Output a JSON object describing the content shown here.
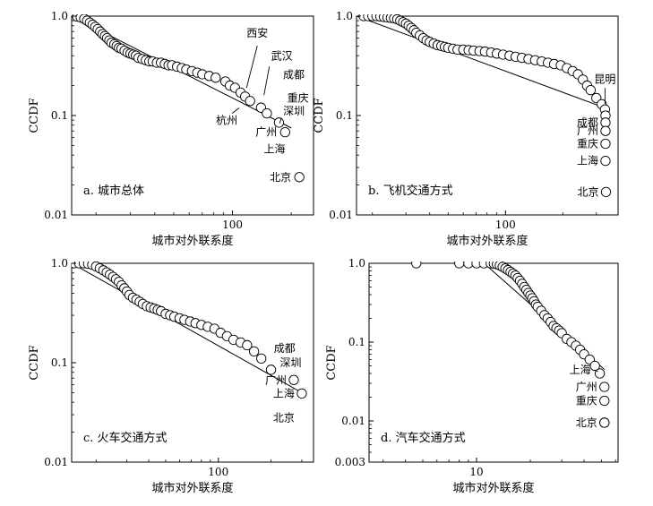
{
  "chart_data": [
    {
      "type": "scatter",
      "title": "a. 城市总体",
      "xlabel": "城市对外联系度",
      "ylabel": "CCDF",
      "x_scale": "log",
      "y_scale": "log",
      "xlim": [
        15,
        260
      ],
      "ylim": [
        0.01,
        1.0
      ],
      "xticks": [
        100
      ],
      "xtick_labels": [
        "100"
      ],
      "yticks": [
        0.01,
        0.1,
        1.0
      ],
      "ytick_labels": [
        "0.01",
        "0.1",
        "1.0"
      ],
      "grid": false,
      "legend": "none",
      "points": {
        "x": [
          16,
          16.7,
          17.4,
          18,
          18.6,
          19.2,
          19.8,
          20.4,
          21,
          21.6,
          22.2,
          22.8,
          23.4,
          24,
          24.8,
          25.5,
          26.2,
          27,
          28,
          29,
          30,
          31,
          32,
          33,
          34.5,
          36,
          37.5,
          39,
          41,
          43,
          45,
          47,
          49,
          52,
          55,
          58,
          62,
          66,
          70,
          76,
          82,
          92,
          97,
          103,
          110,
          116,
          123,
          140,
          150,
          173,
          186,
          220
        ],
        "y": [
          0.99,
          0.97,
          0.94,
          0.9,
          0.86,
          0.82,
          0.78,
          0.74,
          0.7,
          0.66,
          0.63,
          0.6,
          0.57,
          0.54,
          0.52,
          0.5,
          0.48,
          0.47,
          0.45,
          0.43,
          0.42,
          0.41,
          0.4,
          0.38,
          0.37,
          0.36,
          0.35,
          0.35,
          0.34,
          0.34,
          0.33,
          0.32,
          0.32,
          0.31,
          0.3,
          0.29,
          0.28,
          0.27,
          0.26,
          0.25,
          0.24,
          0.22,
          0.2,
          0.19,
          0.17,
          0.155,
          0.14,
          0.12,
          0.105,
          0.085,
          0.068,
          0.024
        ]
      },
      "fit_line": {
        "x": [
          15,
          200
        ],
        "y": [
          1.0,
          0.075
        ]
      },
      "annotations": [
        {
          "label": "西安",
          "x": 118,
          "y": 0.145
        },
        {
          "label": "武汉",
          "x": 148,
          "y": 0.13
        },
        {
          "label": "成都",
          "x": 160,
          "y": 0.112
        },
        {
          "label": "重庆",
          "x": 168,
          "y": 0.095
        },
        {
          "label": "深圳",
          "x": 178,
          "y": 0.08
        },
        {
          "label": "杭州",
          "x": 113,
          "y": 0.135
        },
        {
          "label": "广州",
          "x": 186,
          "y": 0.068
        },
        {
          "label": "上海",
          "x": 205,
          "y": 0.046
        },
        {
          "label": "北京",
          "x": 220,
          "y": 0.024
        }
      ]
    },
    {
      "type": "scatter",
      "title": "b. 飞机交通方式",
      "xlabel": "城市对外联系度",
      "ylabel": "CCDF",
      "x_scale": "log",
      "y_scale": "log",
      "xlim": [
        16.5,
        390
      ],
      "ylim": [
        0.01,
        1.0
      ],
      "xticks": [
        100
      ],
      "xtick_labels": [
        "100"
      ],
      "yticks": [
        0.01,
        0.1,
        1.0
      ],
      "ytick_labels": [
        "0.01",
        "0.1",
        "1.0"
      ],
      "grid": false,
      "legend": "none",
      "points": {
        "x": [
          18,
          19,
          20,
          21,
          22,
          23,
          24,
          25,
          26,
          27,
          28,
          29,
          30,
          31,
          32,
          33,
          34,
          35.5,
          37,
          38.5,
          40,
          42,
          44,
          46,
          48,
          50,
          53,
          56,
          60,
          64,
          68,
          73,
          78,
          84,
          90,
          97,
          105,
          113,
          122,
          132,
          143,
          155,
          167,
          180,
          195,
          210,
          225,
          240,
          255,
          268,
          280,
          300,
          320,
          333,
          335,
          335,
          335,
          335,
          335,
          337
        ],
        "y": [
          1.0,
          1.0,
          1.0,
          1.0,
          0.99,
          0.98,
          0.97,
          0.96,
          0.95,
          0.93,
          0.9,
          0.87,
          0.84,
          0.8,
          0.76,
          0.72,
          0.68,
          0.64,
          0.6,
          0.57,
          0.55,
          0.53,
          0.51,
          0.5,
          0.49,
          0.48,
          0.47,
          0.46,
          0.46,
          0.455,
          0.45,
          0.445,
          0.44,
          0.43,
          0.42,
          0.41,
          0.4,
          0.39,
          0.38,
          0.37,
          0.36,
          0.35,
          0.34,
          0.33,
          0.32,
          0.3,
          0.28,
          0.26,
          0.23,
          0.2,
          0.18,
          0.15,
          0.13,
          0.115,
          0.1,
          0.085,
          0.07,
          0.052,
          0.035,
          0.017
        ]
      },
      "fit_line": {
        "x": [
          16.5,
          330
        ],
        "y": [
          1.0,
          0.12
        ]
      },
      "annotations": [
        {
          "label": "昆明",
          "x": 333,
          "y": 0.115
        },
        {
          "label": "成都",
          "x": 335,
          "y": 0.085
        },
        {
          "label": "广州",
          "x": 335,
          "y": 0.07
        },
        {
          "label": "重庆",
          "x": 335,
          "y": 0.052
        },
        {
          "label": "上海",
          "x": 335,
          "y": 0.035
        },
        {
          "label": "北京",
          "x": 337,
          "y": 0.017
        }
      ]
    },
    {
      "type": "scatter",
      "title": "c. 火车交通方式",
      "xlabel": "城市对外联系度",
      "ylabel": "CCDF",
      "x_scale": "log",
      "y_scale": "log",
      "xlim": [
        14.5,
        350
      ],
      "ylim": [
        0.01,
        1.0
      ],
      "xticks": [
        100
      ],
      "xtick_labels": [
        "100"
      ],
      "yticks": [
        0.01,
        0.1,
        1.0
      ],
      "ytick_labels": [
        "0.01",
        "0.1",
        "1.0"
      ],
      "grid": false,
      "legend": "none",
      "points": {
        "x": [
          15,
          16,
          17,
          18,
          19,
          20,
          21,
          22,
          23,
          24,
          25,
          26,
          27,
          28,
          29,
          30,
          31,
          32.5,
          34,
          35.5,
          37,
          39,
          41,
          43,
          45,
          47,
          50,
          53,
          56,
          60,
          64,
          69,
          74,
          80,
          87,
          95,
          103,
          112,
          122,
          134,
          146,
          160,
          176,
          200,
          270,
          300
        ],
        "y": [
          1.0,
          1.0,
          1.0,
          0.99,
          0.97,
          0.93,
          0.89,
          0.85,
          0.81,
          0.77,
          0.73,
          0.69,
          0.65,
          0.6,
          0.56,
          0.52,
          0.48,
          0.45,
          0.43,
          0.41,
          0.39,
          0.37,
          0.36,
          0.35,
          0.34,
          0.33,
          0.31,
          0.3,
          0.29,
          0.28,
          0.27,
          0.26,
          0.25,
          0.24,
          0.23,
          0.22,
          0.2,
          0.185,
          0.17,
          0.16,
          0.15,
          0.13,
          0.11,
          0.085,
          0.067,
          0.049
        ]
      },
      "fit_line": {
        "x": [
          14.5,
          300
        ],
        "y": [
          1.0,
          0.05
        ]
      },
      "annotations": [
        {
          "label": "成都",
          "x": 176,
          "y": 0.1
        },
        {
          "label": "深圳",
          "x": 200,
          "y": 0.085
        },
        {
          "label": "广州",
          "x": 270,
          "y": 0.067
        },
        {
          "label": "上海",
          "x": 300,
          "y": 0.049
        },
        {
          "label": "北京",
          "x": 300,
          "y": 0.028
        }
      ]
    },
    {
      "type": "scatter",
      "title": "d. 汽车交通方式",
      "xlabel": "城市对外联系度",
      "ylabel": "CCDF",
      "x_scale": "log",
      "y_scale": "log",
      "xlim": [
        2.5,
        62
      ],
      "ylim": [
        0.003,
        1.0
      ],
      "xticks": [
        10
      ],
      "xtick_labels": [
        "10"
      ],
      "yticks": [
        0.003,
        0.01,
        0.1,
        1.0
      ],
      "ytick_labels": [
        "0.003",
        "0.01",
        "0.1",
        "1.0"
      ],
      "grid": false,
      "legend": "none",
      "points": {
        "x": [
          4.6,
          8,
          9,
          10,
          11,
          12,
          12.5,
          13,
          13.5,
          14,
          14.5,
          15,
          15.5,
          16,
          16.5,
          17,
          17.5,
          18,
          18.5,
          19,
          19.5,
          20,
          20.5,
          21,
          21.5,
          22,
          23,
          24,
          25,
          26,
          27,
          28,
          29,
          30,
          32,
          34,
          36,
          38,
          40,
          43,
          46,
          49,
          52,
          52,
          52,
          52
        ],
        "y": [
          1.0,
          1.0,
          1.0,
          1.0,
          1.0,
          1.0,
          0.99,
          0.97,
          0.94,
          0.9,
          0.86,
          0.82,
          0.78,
          0.74,
          0.7,
          0.65,
          0.6,
          0.55,
          0.5,
          0.46,
          0.42,
          0.39,
          0.36,
          0.33,
          0.3,
          0.28,
          0.25,
          0.22,
          0.2,
          0.18,
          0.16,
          0.15,
          0.14,
          0.13,
          0.11,
          0.1,
          0.09,
          0.08,
          0.07,
          0.06,
          0.05,
          0.04,
          0.027,
          0.018,
          0.0095,
          0.0095
        ]
      },
      "fit_line": {
        "x": [
          11,
          52
        ],
        "y": [
          1.0,
          0.045
        ]
      },
      "annotations": [
        {
          "label": "上海",
          "x": 49,
          "y": 0.04
        },
        {
          "label": "广州",
          "x": 52,
          "y": 0.027
        },
        {
          "label": "重庆",
          "x": 52,
          "y": 0.018
        },
        {
          "label": "北京",
          "x": 52,
          "y": 0.0095
        }
      ]
    }
  ]
}
